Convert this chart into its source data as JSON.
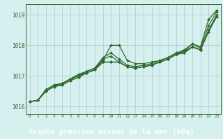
{
  "title": "Graphe pression niveau de la mer (hPa)",
  "bg_color": "#d6f0f0",
  "plot_bg": "#d6f0f0",
  "grid_color": "#b0d0d0",
  "line_color": "#2d6a2d",
  "title_bg": "#3a7a5a",
  "title_fg": "#ffffff",
  "xlim": [
    -0.5,
    23.5
  ],
  "ylim": [
    1015.75,
    1019.35
  ],
  "yticks": [
    1016,
    1017,
    1018,
    1019
  ],
  "xticks": [
    0,
    1,
    2,
    3,
    4,
    5,
    6,
    7,
    8,
    9,
    10,
    11,
    12,
    13,
    14,
    15,
    16,
    17,
    18,
    19,
    20,
    21,
    22,
    23
  ],
  "series": [
    [
      1016.15,
      1016.2,
      1016.55,
      1016.7,
      1016.75,
      1016.9,
      1017.05,
      1017.15,
      1017.25,
      1017.5,
      1018.0,
      1018.0,
      1017.5,
      1017.4,
      1017.4,
      1017.45,
      1017.5,
      1017.6,
      1017.75,
      1017.8,
      1018.05,
      1017.95,
      1018.85,
      1019.15
    ],
    [
      1016.15,
      1016.2,
      1016.55,
      1016.7,
      1016.75,
      1016.9,
      1017.0,
      1017.15,
      1017.25,
      1017.6,
      1017.75,
      1017.55,
      1017.35,
      1017.3,
      1017.35,
      1017.4,
      1017.5,
      1017.6,
      1017.75,
      1017.85,
      1018.05,
      1017.9,
      1018.65,
      1019.1
    ],
    [
      1016.15,
      1016.2,
      1016.5,
      1016.65,
      1016.75,
      1016.9,
      1017.0,
      1017.1,
      1017.2,
      1017.55,
      1017.65,
      1017.45,
      1017.3,
      1017.25,
      1017.3,
      1017.35,
      1017.45,
      1017.55,
      1017.7,
      1017.8,
      1017.95,
      1017.85,
      1018.5,
      1019.0
    ],
    [
      1016.15,
      1016.2,
      1016.5,
      1016.65,
      1016.7,
      1016.85,
      1016.95,
      1017.1,
      1017.2,
      1017.45,
      1017.45,
      1017.45,
      1017.3,
      1017.25,
      1017.3,
      1017.35,
      1017.45,
      1017.55,
      1017.7,
      1017.75,
      1017.95,
      1017.85,
      1018.45,
      1018.95
    ],
    [
      1016.15,
      1016.2,
      1016.5,
      1016.65,
      1016.7,
      1016.85,
      1016.95,
      1017.1,
      1017.2,
      1017.45,
      1017.45,
      1017.45,
      1017.3,
      1017.25,
      1017.3,
      1017.35,
      1017.45,
      1017.55,
      1017.7,
      1017.75,
      1017.95,
      1017.85,
      1018.45,
      1018.95
    ]
  ]
}
